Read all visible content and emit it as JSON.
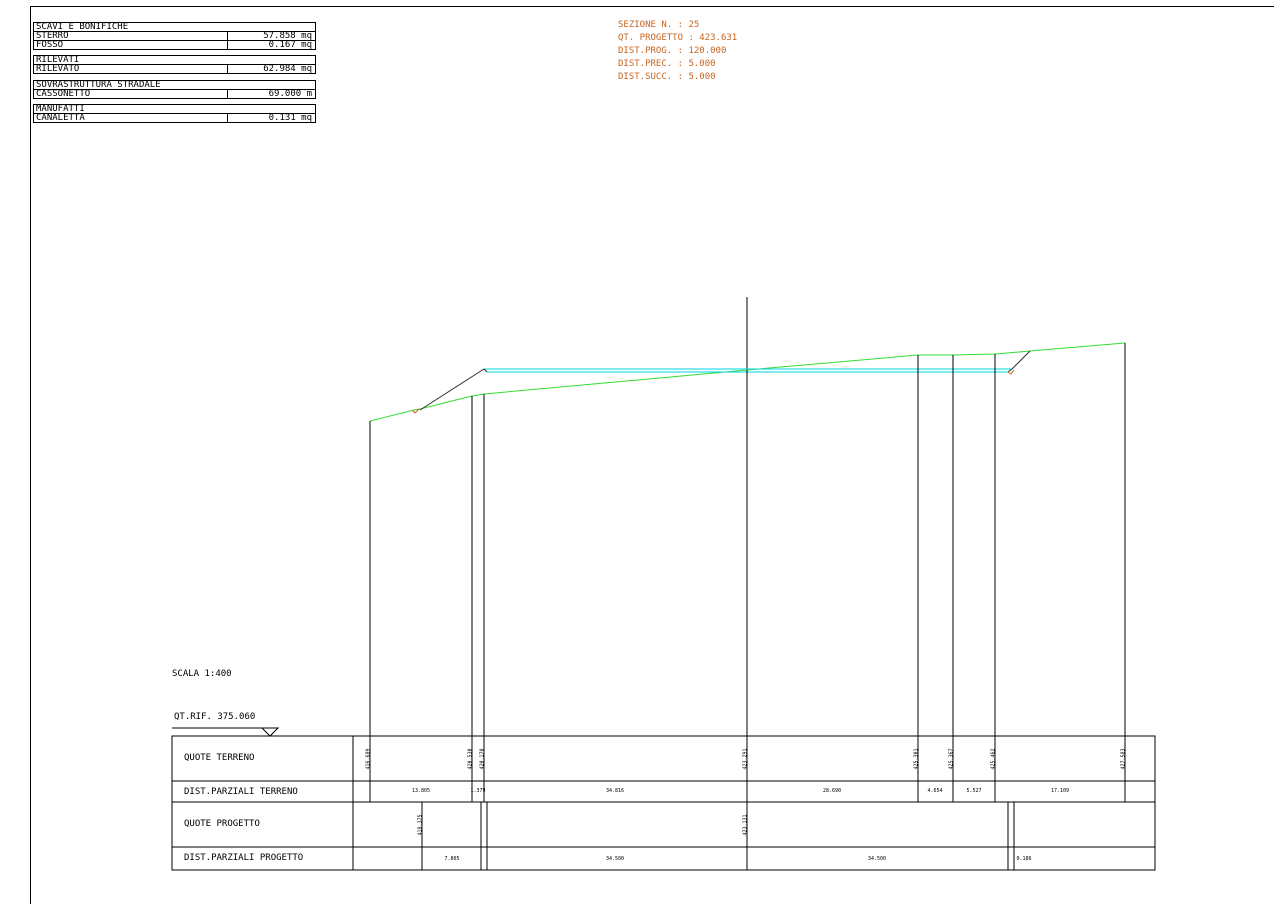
{
  "summary": {
    "scavi_title": "SCAVI E BONIFICHE",
    "sterro_label": "STERRO",
    "sterro_value": "57.858 mq",
    "fosso_label": "FOSSO",
    "fosso_value": "0.167 mq",
    "rilevati_title": "RILEVATI",
    "rilevato_label": "RILEVATO",
    "rilevato_value": "62.984 mq",
    "sovra_title": "SOVRASTRUTTURA STRADALE",
    "cassonetto_label": "CASSONETTO",
    "cassonetto_value": "69.000 m",
    "manufatti_title": "MANUFATTI",
    "canaletta_label": "CANALETTA",
    "canaletta_value": "0.131 mq"
  },
  "section": {
    "sezione": "SEZIONE N. : 25",
    "qt_progetto": "QT. PROGETTO : 423.631",
    "dist_prog": "DIST.PROG. : 120.000",
    "dist_prec": "DIST.PREC. : 5.000",
    "dist_succ": "DIST.SUCC. : 5.000"
  },
  "scala": "SCALA 1:400",
  "qt_rif": "QT.RIF. 375.060",
  "table": {
    "quote_terreno_label": "QUOTE TERRENO",
    "dist_terreno_label": "DIST.PARZIALI TERRENO",
    "quote_progetto_label": "QUOTE PROGETTO",
    "dist_progetto_label": "DIST.PARZIALI PROGETTO",
    "quote_terreno": [
      "416.689",
      "420.530",
      "420.170",
      "423.291",
      "425.301",
      "425.367",
      "425.462",
      "427.583"
    ],
    "dist_terreno": [
      "13.805",
      "1.379",
      "34.816",
      "28.690",
      "4.654",
      "5.527",
      "17.109"
    ],
    "quote_progetto": [
      "418.375",
      "423.131"
    ],
    "dist_progetto": [
      "7.805",
      "34.500",
      "34.500",
      "0.186"
    ]
  },
  "colors": {
    "terrain": "#33dd33",
    "road": "#00d5e8",
    "info": "#c8641e",
    "line": "#000000"
  }
}
